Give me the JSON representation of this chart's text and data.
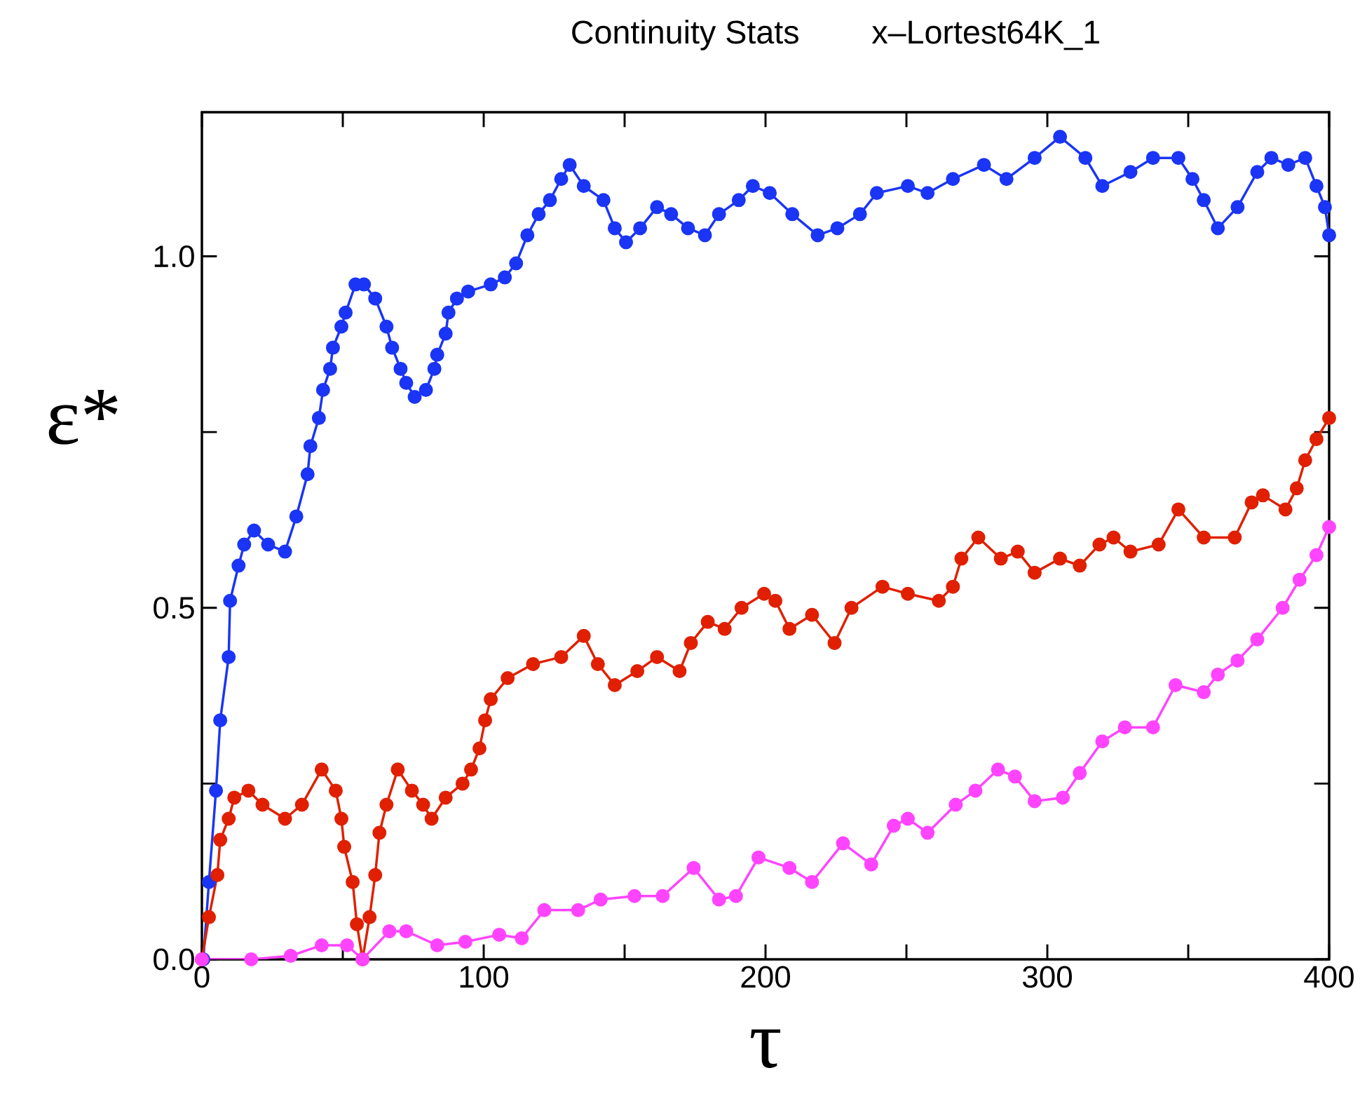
{
  "chart_data": {
    "type": "line",
    "title": "Continuity Stats",
    "subtitle": "x–Lortest64K_1",
    "xlabel": "τ",
    "ylabel": "ε*",
    "xlim": [
      0,
      400
    ],
    "ylim": [
      0,
      1.205
    ],
    "xticks": [
      0,
      {
        "value": 50,
        "label": null
      },
      100,
      {
        "value": 150,
        "label": null
      },
      200,
      {
        "value": 250,
        "label": null
      },
      300,
      {
        "value": 350,
        "label": null
      },
      400
    ],
    "yticks": [
      {
        "value": 0,
        "label": "0.0"
      },
      {
        "value": 0.25,
        "label": null
      },
      {
        "value": 0.5,
        "label": "0.5"
      },
      {
        "value": 0.75,
        "label": null
      },
      {
        "value": 1.0,
        "label": "1.0"
      }
    ],
    "marker": "circle",
    "line_style": "solid",
    "series": [
      {
        "color": "#1a35f5",
        "x": [
          0.5,
          2.5,
          5,
          6.5,
          9.5,
          10,
          13,
          15,
          18.5,
          23.5,
          29.5,
          33.5,
          37.5,
          38.5,
          41.5,
          43,
          45.5,
          46.5,
          49.5,
          51,
          54.5,
          57.5,
          61.5,
          65.5,
          67.5,
          70.5,
          72.5,
          75.5,
          79.5,
          82.5,
          83.5,
          86.5,
          87.5,
          90.5,
          94.5,
          102.5,
          107.5,
          111.5,
          115.5,
          119.5,
          123.5,
          127.5,
          130.5,
          135.5,
          142.5,
          146.5,
          150.5,
          155.5,
          161.5,
          166.5,
          172.5,
          178.5,
          183.5,
          190.5,
          195.5,
          201.5,
          209.5,
          218.5,
          225.5,
          233.5,
          239.5,
          250.5,
          257.5,
          266.5,
          277.5,
          285.5,
          295.5,
          304.5,
          313.5,
          319.5,
          329.5,
          337.5,
          346.5,
          351.5,
          355.5,
          360.5,
          367.5,
          374.5,
          379.5,
          385.5,
          391.5,
          395.5,
          398.5,
          400
        ],
        "values": [
          0.0,
          0.11,
          0.24,
          0.34,
          0.43,
          0.51,
          0.56,
          0.59,
          0.61,
          0.59,
          0.58,
          0.63,
          0.69,
          0.73,
          0.77,
          0.81,
          0.84,
          0.87,
          0.9,
          0.92,
          0.96,
          0.96,
          0.94,
          0.9,
          0.87,
          0.84,
          0.82,
          0.8,
          0.81,
          0.84,
          0.86,
          0.89,
          0.92,
          0.94,
          0.95,
          0.96,
          0.97,
          0.99,
          1.03,
          1.06,
          1.08,
          1.11,
          1.13,
          1.1,
          1.08,
          1.04,
          1.02,
          1.04,
          1.07,
          1.06,
          1.04,
          1.03,
          1.06,
          1.08,
          1.1,
          1.09,
          1.06,
          1.03,
          1.04,
          1.06,
          1.09,
          1.1,
          1.09,
          1.11,
          1.13,
          1.11,
          1.14,
          1.17,
          1.14,
          1.1,
          1.12,
          1.14,
          1.14,
          1.11,
          1.08,
          1.04,
          1.07,
          1.12,
          1.14,
          1.13,
          1.14,
          1.1,
          1.07,
          1.03
        ]
      },
      {
        "color": "#e02000",
        "x": [
          0,
          2.5,
          5.5,
          6.5,
          9.5,
          11.5,
          16.5,
          21.5,
          29.5,
          35.5,
          42.5,
          47.5,
          49.5,
          50.5,
          53.5,
          55,
          57,
          59.5,
          61.5,
          63,
          65.5,
          69.5,
          74.5,
          78.5,
          81.5,
          86.5,
          92.5,
          95.5,
          98.5,
          100.5,
          102.5,
          108.5,
          117.5,
          127.5,
          135.5,
          140.5,
          146.5,
          154.5,
          161.5,
          169.5,
          173.5,
          179.5,
          185.5,
          191.5,
          199.5,
          203.5,
          208.5,
          216.5,
          224.5,
          230.5,
          241.5,
          250.5,
          261.5,
          266.5,
          269.5,
          275.5,
          283.5,
          289.5,
          295.5,
          304.5,
          311.5,
          318.5,
          323.5,
          329.5,
          339.5,
          346.5,
          355.5,
          366.5,
          372.5,
          376.5,
          384.5,
          388.5,
          391.5,
          395.5,
          400
        ],
        "values": [
          0.0,
          0.06,
          0.12,
          0.17,
          0.2,
          0.23,
          0.24,
          0.22,
          0.2,
          0.22,
          0.27,
          0.24,
          0.2,
          0.16,
          0.11,
          0.05,
          0.0,
          0.06,
          0.12,
          0.18,
          0.22,
          0.27,
          0.24,
          0.22,
          0.2,
          0.23,
          0.25,
          0.27,
          0.3,
          0.34,
          0.37,
          0.4,
          0.42,
          0.43,
          0.46,
          0.42,
          0.39,
          0.41,
          0.43,
          0.41,
          0.45,
          0.48,
          0.47,
          0.5,
          0.52,
          0.51,
          0.47,
          0.49,
          0.45,
          0.5,
          0.53,
          0.52,
          0.51,
          0.53,
          0.57,
          0.6,
          0.57,
          0.58,
          0.55,
          0.57,
          0.56,
          0.59,
          0.6,
          0.58,
          0.59,
          0.64,
          0.6,
          0.6,
          0.65,
          0.66,
          0.64,
          0.67,
          0.71,
          0.74,
          0.77
        ]
      },
      {
        "color": "#ff44ff",
        "x": [
          0,
          17.5,
          31.5,
          42.5,
          51.5,
          57,
          66.5,
          72.5,
          83.5,
          93.5,
          105.5,
          113.5,
          121.5,
          133.5,
          141.5,
          153.5,
          163.5,
          174.5,
          183.5,
          189.5,
          197.5,
          208.5,
          216.5,
          227.5,
          237.5,
          245.5,
          250.5,
          257.5,
          267.5,
          274.5,
          282.5,
          288.5,
          295.5,
          305.5,
          311.5,
          319.5,
          327.5,
          337.5,
          345.5,
          355.5,
          360.5,
          367.5,
          374.5,
          383.5,
          389.5,
          395.5,
          400
        ],
        "values": [
          0.0,
          0.0,
          0.005,
          0.02,
          0.02,
          0.0,
          0.04,
          0.04,
          0.02,
          0.025,
          0.035,
          0.03,
          0.07,
          0.07,
          0.085,
          0.09,
          0.09,
          0.13,
          0.085,
          0.09,
          0.145,
          0.13,
          0.11,
          0.165,
          0.135,
          0.19,
          0.2,
          0.18,
          0.22,
          0.24,
          0.27,
          0.26,
          0.225,
          0.23,
          0.265,
          0.31,
          0.33,
          0.33,
          0.39,
          0.38,
          0.405,
          0.425,
          0.455,
          0.5,
          0.54,
          0.575,
          0.615
        ]
      }
    ]
  }
}
